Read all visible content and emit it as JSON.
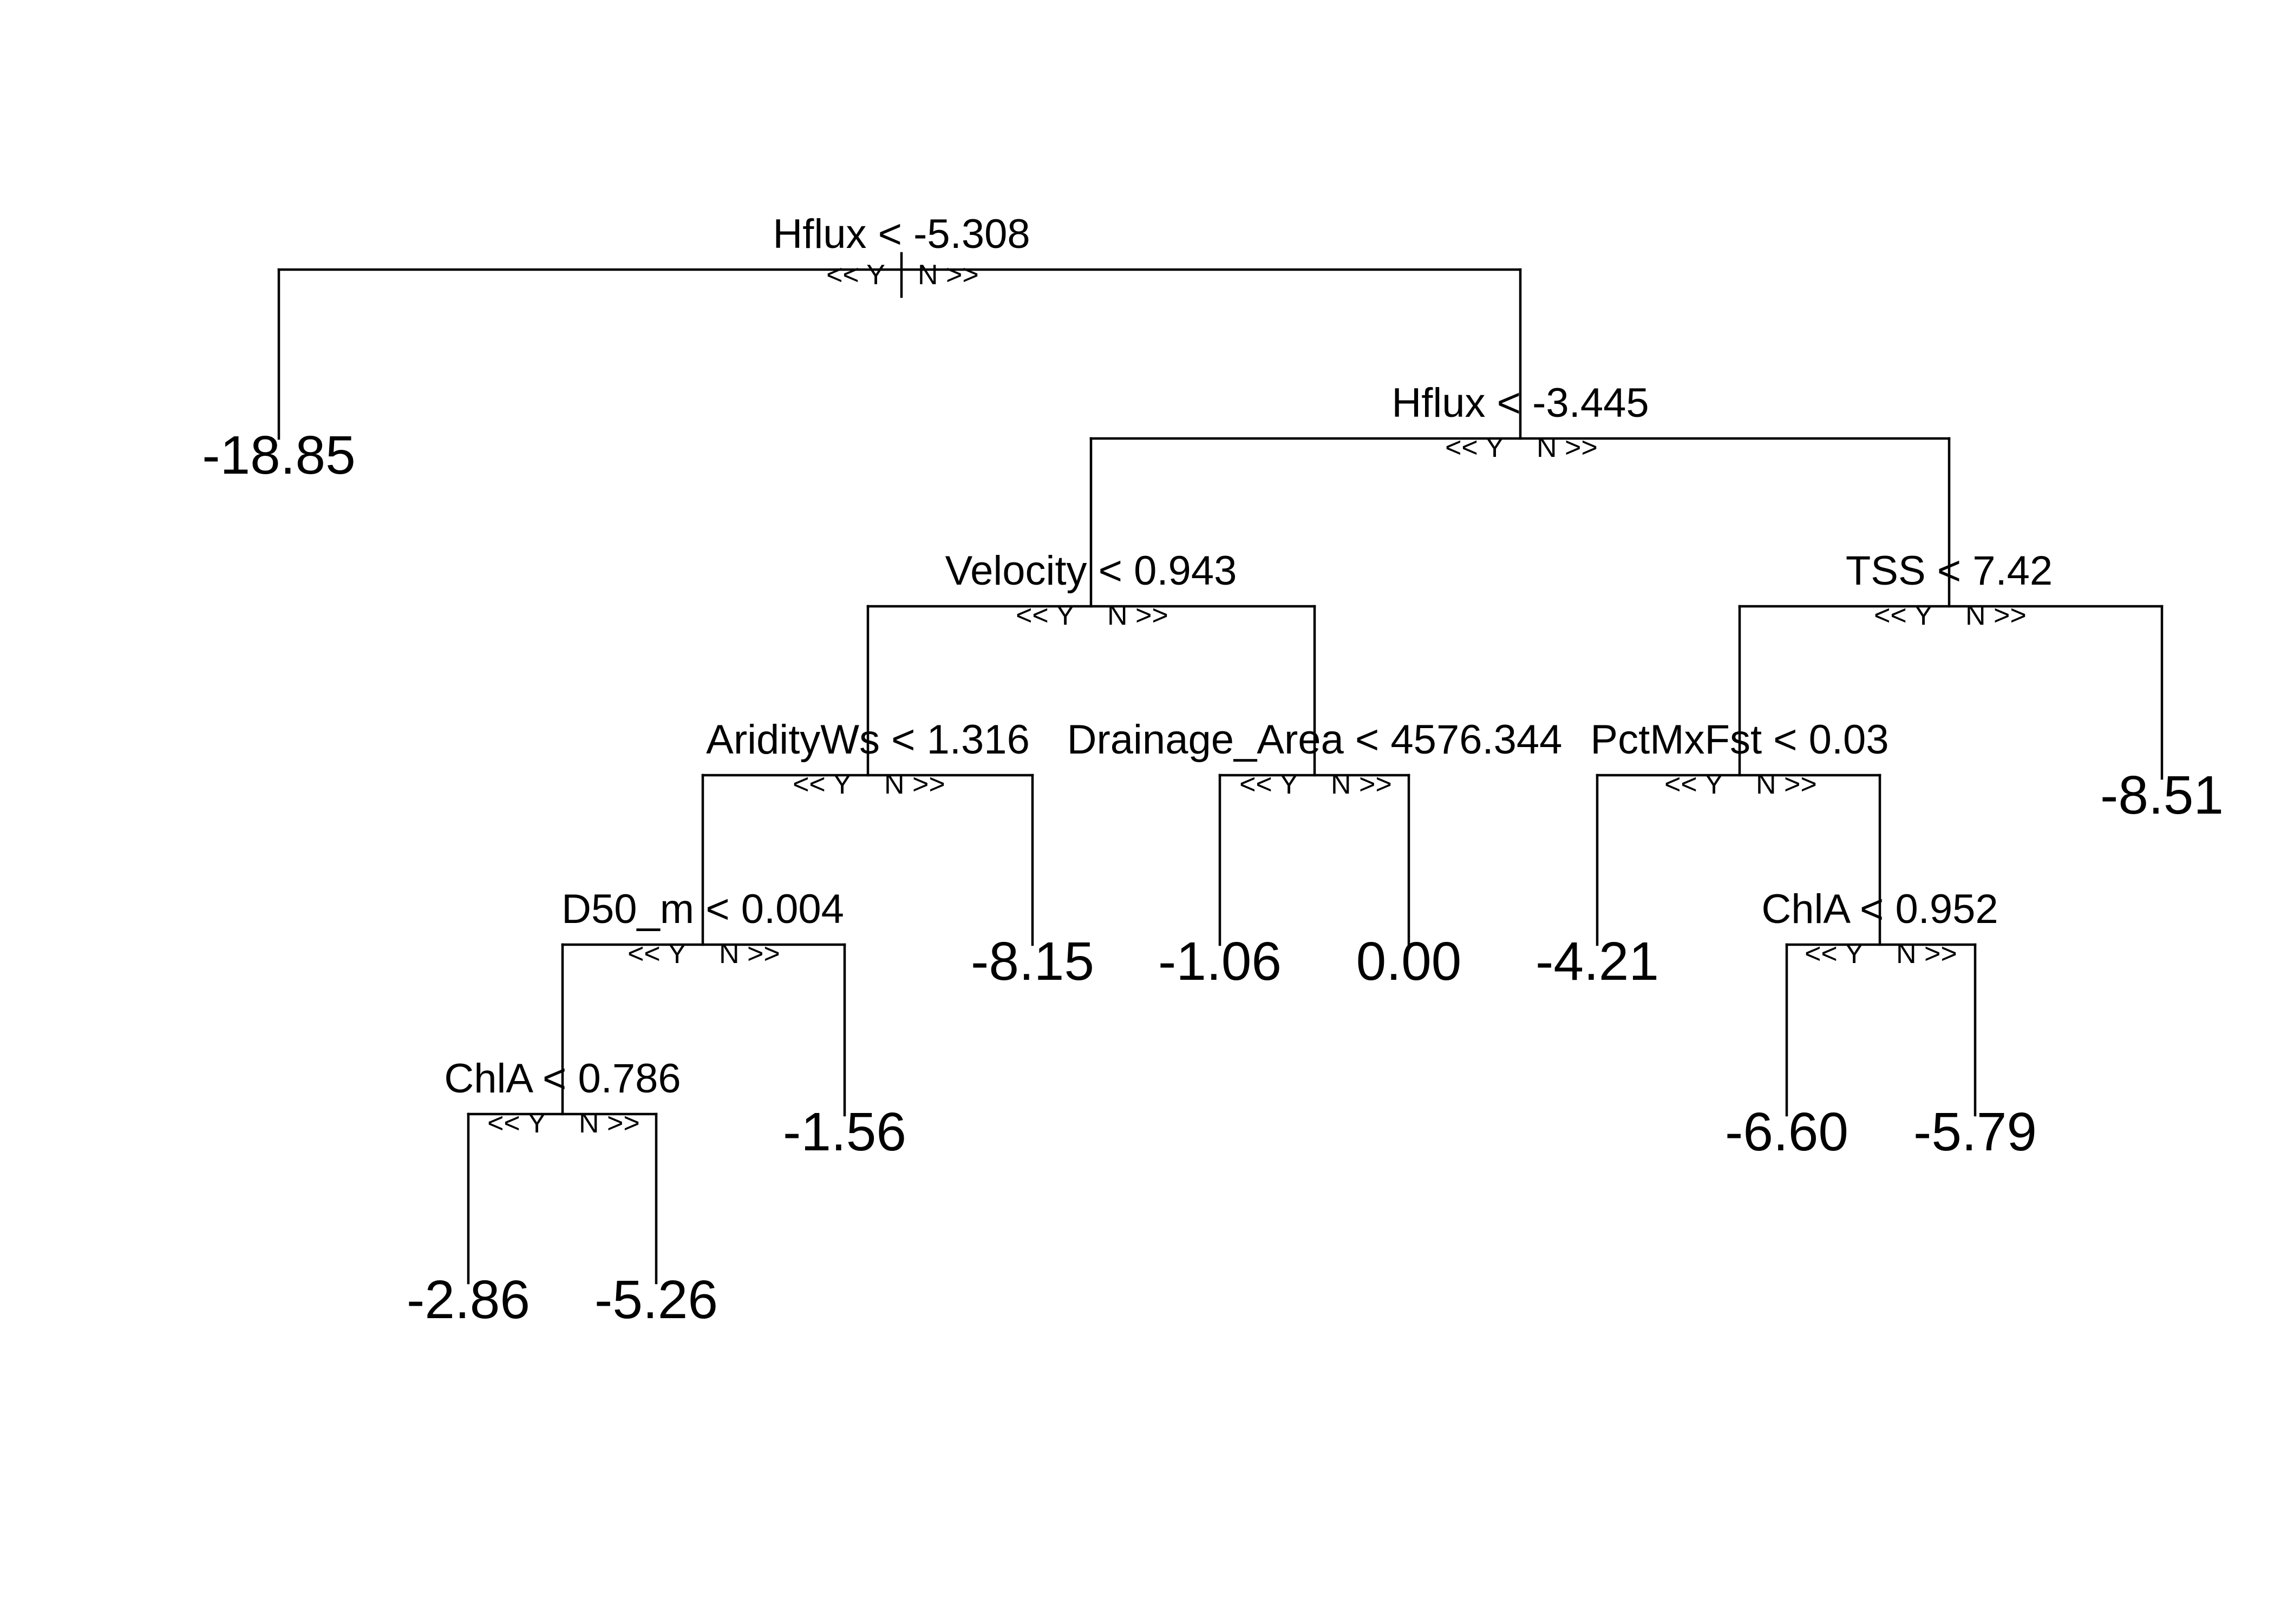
{
  "tree": {
    "branch_labels": {
      "yes": "<< Y",
      "no": "N >>"
    },
    "splits": [
      {
        "id": "n1",
        "label": "Hflux < -5.308"
      },
      {
        "id": "n2",
        "label": "Hflux < -3.445"
      },
      {
        "id": "n3",
        "label": "Velocity < 0.943"
      },
      {
        "id": "n4",
        "label": "TSS < 7.42"
      },
      {
        "id": "n5",
        "label": "AridityWs < 1.316"
      },
      {
        "id": "n6",
        "label": "Drainage_Area < 4576.344"
      },
      {
        "id": "n7",
        "label": "PctMxFst < 0.03"
      },
      {
        "id": "n8",
        "label": "D50_m < 0.004"
      },
      {
        "id": "n9",
        "label": "ChlA < 0.952"
      },
      {
        "id": "n10",
        "label": "ChlA < 0.786"
      }
    ],
    "leaves": [
      {
        "id": "L1",
        "value": "-18.85"
      },
      {
        "id": "L2",
        "value": "-8.51"
      },
      {
        "id": "L3",
        "value": "-8.15"
      },
      {
        "id": "L4",
        "value": "-1.06"
      },
      {
        "id": "L5",
        "value": "0.00"
      },
      {
        "id": "L6",
        "value": "-4.21"
      },
      {
        "id": "L7",
        "value": "-1.56"
      },
      {
        "id": "L8",
        "value": "-6.60"
      },
      {
        "id": "L9",
        "value": "-5.79"
      },
      {
        "id": "L10",
        "value": "-2.86"
      },
      {
        "id": "L11",
        "value": "-5.26"
      }
    ]
  }
}
